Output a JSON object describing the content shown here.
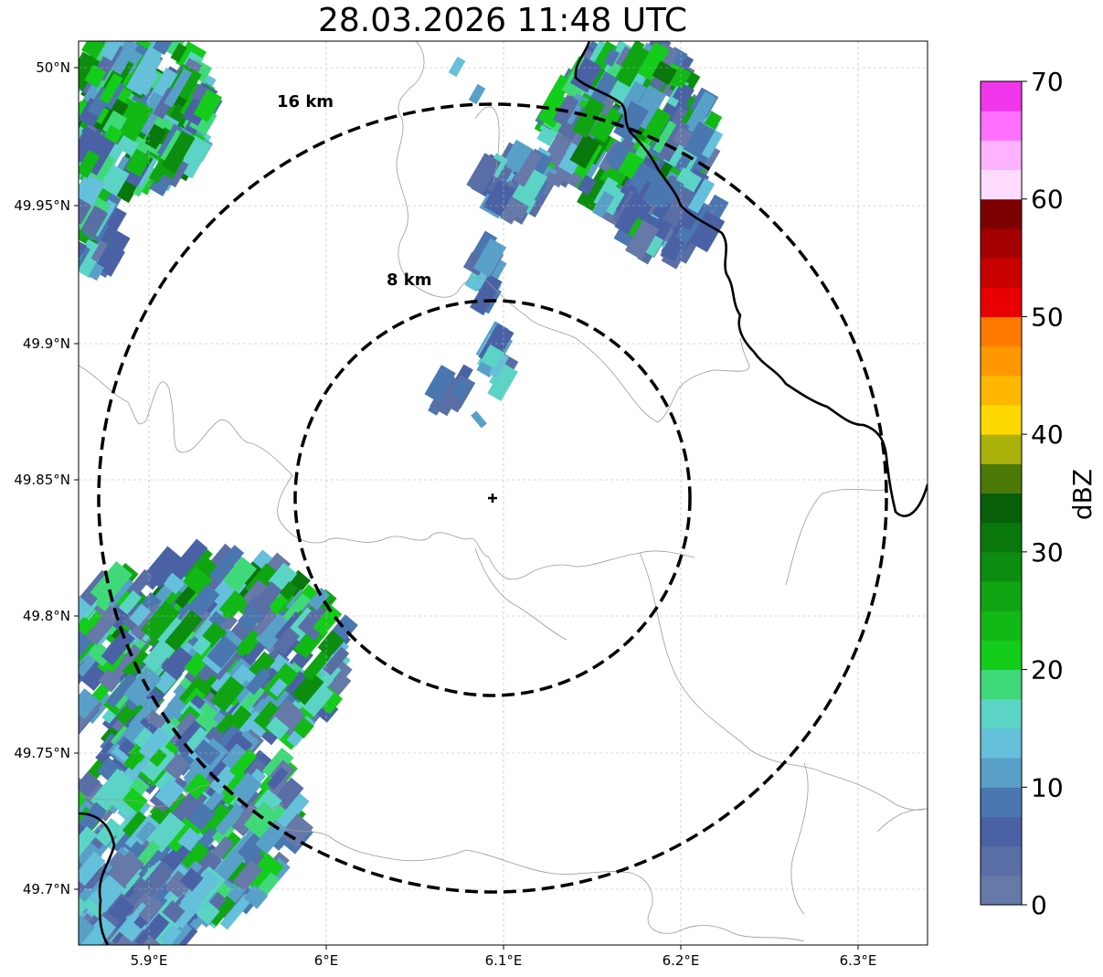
{
  "title": "28.03.2026 11:48 UTC",
  "axes": {
    "lon_ticks": [
      "5.9°E",
      "6°E",
      "6.1°E",
      "6.2°E",
      "6.3°E"
    ],
    "lat_ticks": [
      "49.7°N",
      "49.75°N",
      "49.8°N",
      "49.85°N",
      "49.9°N",
      "49.95°N",
      "50°N"
    ]
  },
  "range_rings": [
    {
      "label": "8 km",
      "radius_km": 8
    },
    {
      "label": "16 km",
      "radius_km": 16
    }
  ],
  "radar_site": {
    "lon": 6.095,
    "lat": 49.843
  },
  "colorbar": {
    "label": "dBZ",
    "ticks": [
      "0",
      "10",
      "20",
      "30",
      "40",
      "50",
      "60",
      "70"
    ],
    "min": 0,
    "max": 70,
    "colors": [
      "#6679a8",
      "#5a6ea6",
      "#4a62a5",
      "#4b77b0",
      "#58a0c8",
      "#64c0db",
      "#5bd4c6",
      "#40d97a",
      "#14cc1a",
      "#12b815",
      "#10a412",
      "#0c8d0f",
      "#0a770c",
      "#075f08",
      "#4b7a08",
      "#aab10b",
      "#ffd800",
      "#ffb700",
      "#ff9800",
      "#ff7b00",
      "#e80000",
      "#c90000",
      "#a50000",
      "#7d0000",
      "#ffdcff",
      "#ffb2ff",
      "#ff70ff",
      "#f236ec"
    ]
  },
  "colors": {
    "border_country": "#000000",
    "border_admin": "#9a9a9a",
    "grid": "#b0b0b0"
  }
}
